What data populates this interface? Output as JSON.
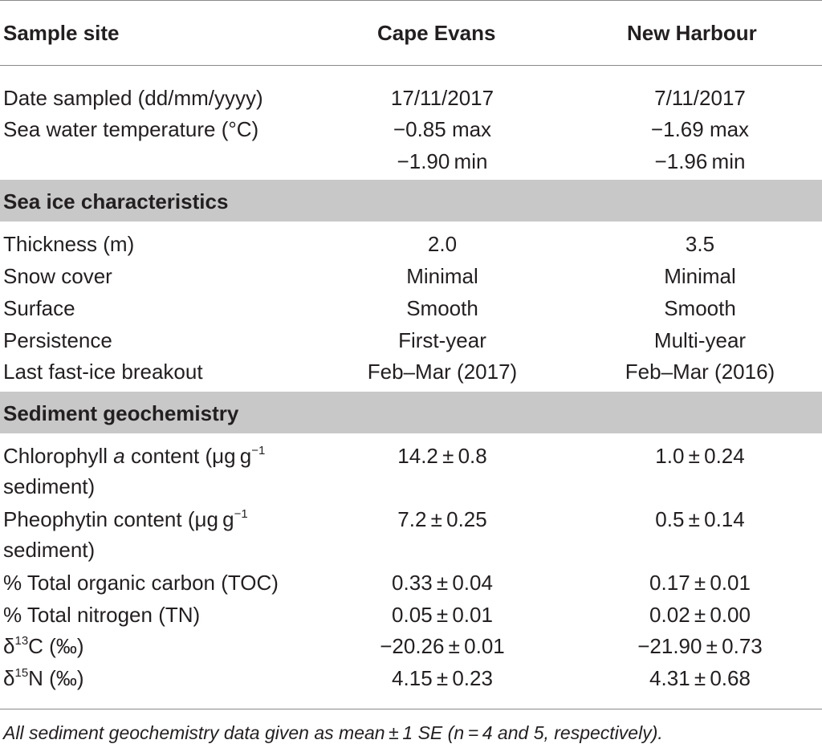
{
  "header": {
    "col0": "Sample site",
    "col1": "Cape Evans",
    "col2": "New Harbour"
  },
  "rows_general": [
    {
      "label": "Date sampled (dd/mm/yyyy)",
      "v1": "17/11/2017",
      "v2": "7/11/2017"
    },
    {
      "label": "Sea water temperature (°C)",
      "v1": "−0.85 max",
      "v2": "−1.69 max"
    },
    {
      "label": "",
      "v1": "−1.90 min",
      "v2": "−1.96 min"
    }
  ],
  "section_ice": "Sea ice characteristics",
  "rows_ice": [
    {
      "label": "Thickness (m)",
      "v1": "2.0",
      "v2": "3.5"
    },
    {
      "label": "Snow cover",
      "v1": "Minimal",
      "v2": "Minimal"
    },
    {
      "label": "Surface",
      "v1": "Smooth",
      "v2": "Smooth"
    },
    {
      "label": "Persistence",
      "v1": "First-year",
      "v2": "Multi-year"
    },
    {
      "label": "Last fast-ice breakout",
      "v1": "Feb–Mar (2017)",
      "v2": "Feb–Mar (2016)"
    }
  ],
  "section_sed": "Sediment geochemistry",
  "rows_sed": {
    "chl": {
      "label_a": "Chlorophyll ",
      "label_italic": "a",
      "label_b": " content (μg g",
      "label_sup": "−1",
      "label_line2": "sediment)",
      "v1": "14.2 ± 0.8",
      "v2": "1.0 ± 0.24"
    },
    "pheo": {
      "label_a": "Pheophytin content (μg g",
      "label_sup": "−1",
      "label_line2": "sediment)",
      "v1": "7.2 ± 0.25",
      "v2": "0.5 ± 0.14"
    },
    "toc": {
      "label": "% Total organic carbon (TOC)",
      "v1": "0.33 ± 0.04",
      "v2": "0.17 ± 0.01"
    },
    "tn": {
      "label": "% Total nitrogen (TN)",
      "v1": "0.05 ± 0.01",
      "v2": "0.02 ± 0.00"
    },
    "c13": {
      "label_pre": "δ",
      "label_sup": "13",
      "label_post": "C (‰)",
      "v1": "−20.26 ± 0.01",
      "v2": "−21.90 ± 0.73"
    },
    "n15": {
      "label_pre": "δ",
      "label_sup": "15",
      "label_post": "N (‰)",
      "v1": "4.15 ± 0.23",
      "v2": "4.31 ± 0.68"
    }
  },
  "footnote": "All sediment geochemistry data given as mean ± 1 SE (n = 4 and 5, respectively)."
}
